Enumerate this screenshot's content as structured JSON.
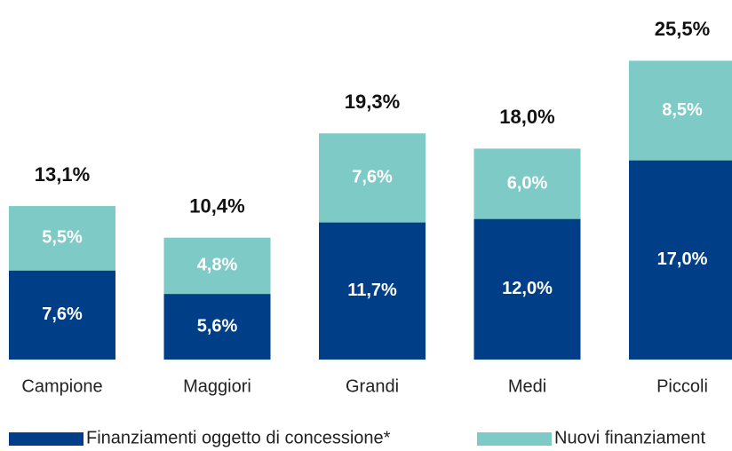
{
  "chart_data": {
    "type": "stacked_bar",
    "categories": [
      "Campione",
      "Maggiori",
      "Grandi",
      "Medi",
      "Piccoli"
    ],
    "series": [
      {
        "name": "Finanziamenti oggetto di concessione*",
        "color": "#003f87",
        "values": [
          7.6,
          5.6,
          11.7,
          12.0,
          17.0
        ],
        "value_labels": [
          "7,6%",
          "5,6%",
          "11,7%",
          "12,0%",
          "17,0%"
        ]
      },
      {
        "name": "Nuovi finanziament",
        "color": "#7ecac6",
        "values": [
          5.5,
          4.8,
          7.6,
          6.0,
          8.5
        ],
        "value_labels": [
          "5,5%",
          "4,8%",
          "7,6%",
          "6,0%",
          "8,5%"
        ]
      }
    ],
    "totals": [
      13.1,
      10.4,
      19.3,
      18.0,
      25.5
    ],
    "total_labels": [
      "13,1%",
      "10,4%",
      "19,3%",
      "18,0%",
      "25,5%"
    ]
  }
}
